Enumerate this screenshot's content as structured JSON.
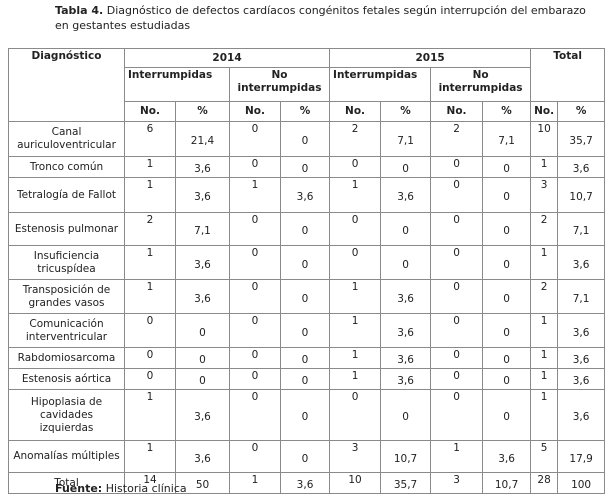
{
  "caption": {
    "label": "Tabla 4.",
    "text": "Diagnóstico de defectos cardíacos congénitos fetales según interrupción del embarazo en gestantes estudiadas"
  },
  "table": {
    "header": {
      "diagnosis": "Diagnóstico",
      "years": [
        "2014",
        "2015"
      ],
      "total": "Total",
      "groups": [
        "Interrumpidas",
        "No interrumpidas",
        "Interrumpidas",
        "No interrumpidas"
      ],
      "subcols": [
        "No.",
        "%",
        "No.",
        "%",
        "No.",
        "%",
        "No.",
        "%",
        "No.",
        "%"
      ]
    },
    "rows": [
      [
        "Canal auriculoventricular",
        "6",
        "21,4",
        "0",
        "0",
        "2",
        "7,1",
        "2",
        "7,1",
        "10",
        "35,7"
      ],
      [
        "Tronco común",
        "1",
        "3,6",
        "0",
        "0",
        "0",
        "0",
        "0",
        "0",
        "1",
        "3,6"
      ],
      [
        "Tetralogía de Fallot",
        "1",
        "3,6",
        "1",
        "3,6",
        "1",
        "3,6",
        "0",
        "0",
        "3",
        "10,7"
      ],
      [
        "Estenosis pulmonar",
        "2",
        "7,1",
        "0",
        "0",
        "0",
        "0",
        "0",
        "0",
        "2",
        "7,1"
      ],
      [
        "Insuficiencia tricuspídea",
        "1",
        "3,6",
        "0",
        "0",
        "0",
        "0",
        "0",
        "0",
        "1",
        "3,6"
      ],
      [
        "Transposición de grandes vasos",
        "1",
        "3,6",
        "0",
        "0",
        "1",
        "3,6",
        "0",
        "0",
        "2",
        "7,1"
      ],
      [
        "Comunicación interventricular",
        "0",
        "0",
        "0",
        "0",
        "1",
        "3,6",
        "0",
        "0",
        "1",
        "3,6"
      ],
      [
        "Rabdomiosarcoma",
        "0",
        "0",
        "0",
        "0",
        "1",
        "3,6",
        "0",
        "0",
        "1",
        "3,6"
      ],
      [
        "Estenosis aórtica",
        "0",
        "0",
        "0",
        "0",
        "1",
        "3,6",
        "0",
        "0",
        "1",
        "3,6"
      ],
      [
        "Hipoplasia de cavidades izquierdas",
        "1",
        "3,6",
        "0",
        "0",
        "0",
        "0",
        "0",
        "0",
        "1",
        "3,6"
      ],
      [
        "Anomalías múltiples",
        "1",
        "3,6",
        "0",
        "0",
        "3",
        "10,7",
        "1",
        "3,6",
        "5",
        "17,9"
      ],
      [
        "Total",
        "14",
        "50",
        "1",
        "3,6",
        "10",
        "35,7",
        "3",
        "10,7",
        "28",
        "100"
      ]
    ]
  },
  "footer": {
    "label": "Fuente:",
    "text": "Historia clínica"
  }
}
